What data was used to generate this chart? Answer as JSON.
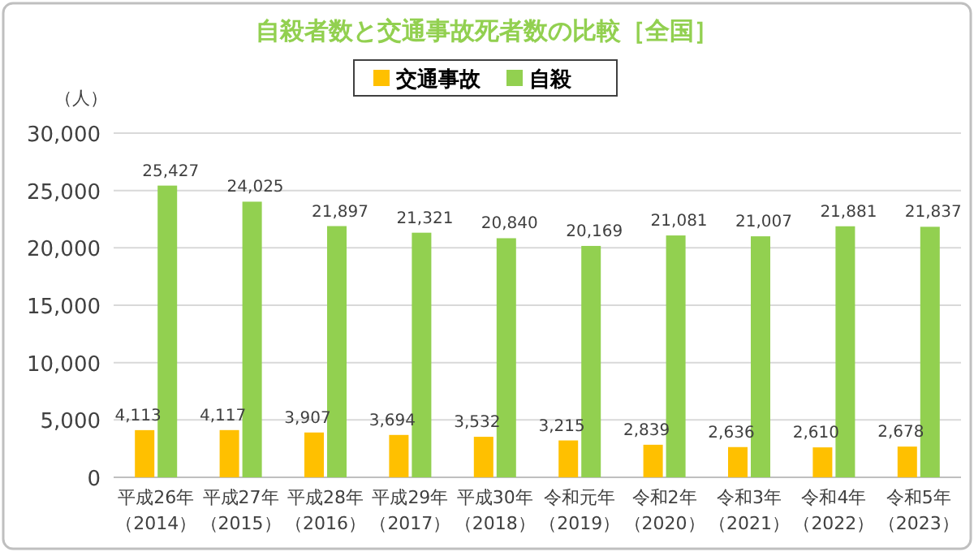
{
  "chart_data": {
    "type": "bar",
    "title": "自殺者数と交通事故死者数の比較［全国］",
    "ylabel": "（人）",
    "categories": [
      "平成26年（2014）",
      "平成27年（2015）",
      "平成28年（2016）",
      "平成29年（2017）",
      "平成30年（2018）",
      "令和元年（2019）",
      "令和2年（2020）",
      "令和3年（2021）",
      "令和4年（2022）",
      "令和5年（2023）"
    ],
    "series": [
      {
        "name": "交通事故",
        "color": "#ffc000",
        "values": [
          4113,
          4117,
          3907,
          3694,
          3532,
          3215,
          2839,
          2636,
          2610,
          2678
        ],
        "value_labels": [
          "4,113",
          "4,117",
          "3,907",
          "3,694",
          "3,532",
          "3,215",
          "2,839",
          "2,636",
          "2,610",
          "2,678"
        ]
      },
      {
        "name": "自殺",
        "color": "#92d050",
        "values": [
          25427,
          24025,
          21897,
          21321,
          20840,
          20169,
          21081,
          21007,
          21881,
          21837
        ],
        "value_labels": [
          "25,427",
          "24,025",
          "21,897",
          "21,321",
          "20,840",
          "20,169",
          "21,081",
          "21,007",
          "21,881",
          "21,837"
        ]
      }
    ],
    "ylim": [
      0,
      30000
    ],
    "yticks": [
      0,
      {
        "value": 5000,
        "label": "5,000"
      },
      {
        "value": 10000,
        "label": "10,000"
      },
      {
        "value": 15000,
        "label": "15,000"
      },
      {
        "value": 20000,
        "label": "20,000"
      },
      {
        "value": 25000,
        "label": "25,000"
      },
      {
        "value": 30000,
        "label": "30,000"
      }
    ],
    "grid": "y",
    "legend": "top"
  }
}
